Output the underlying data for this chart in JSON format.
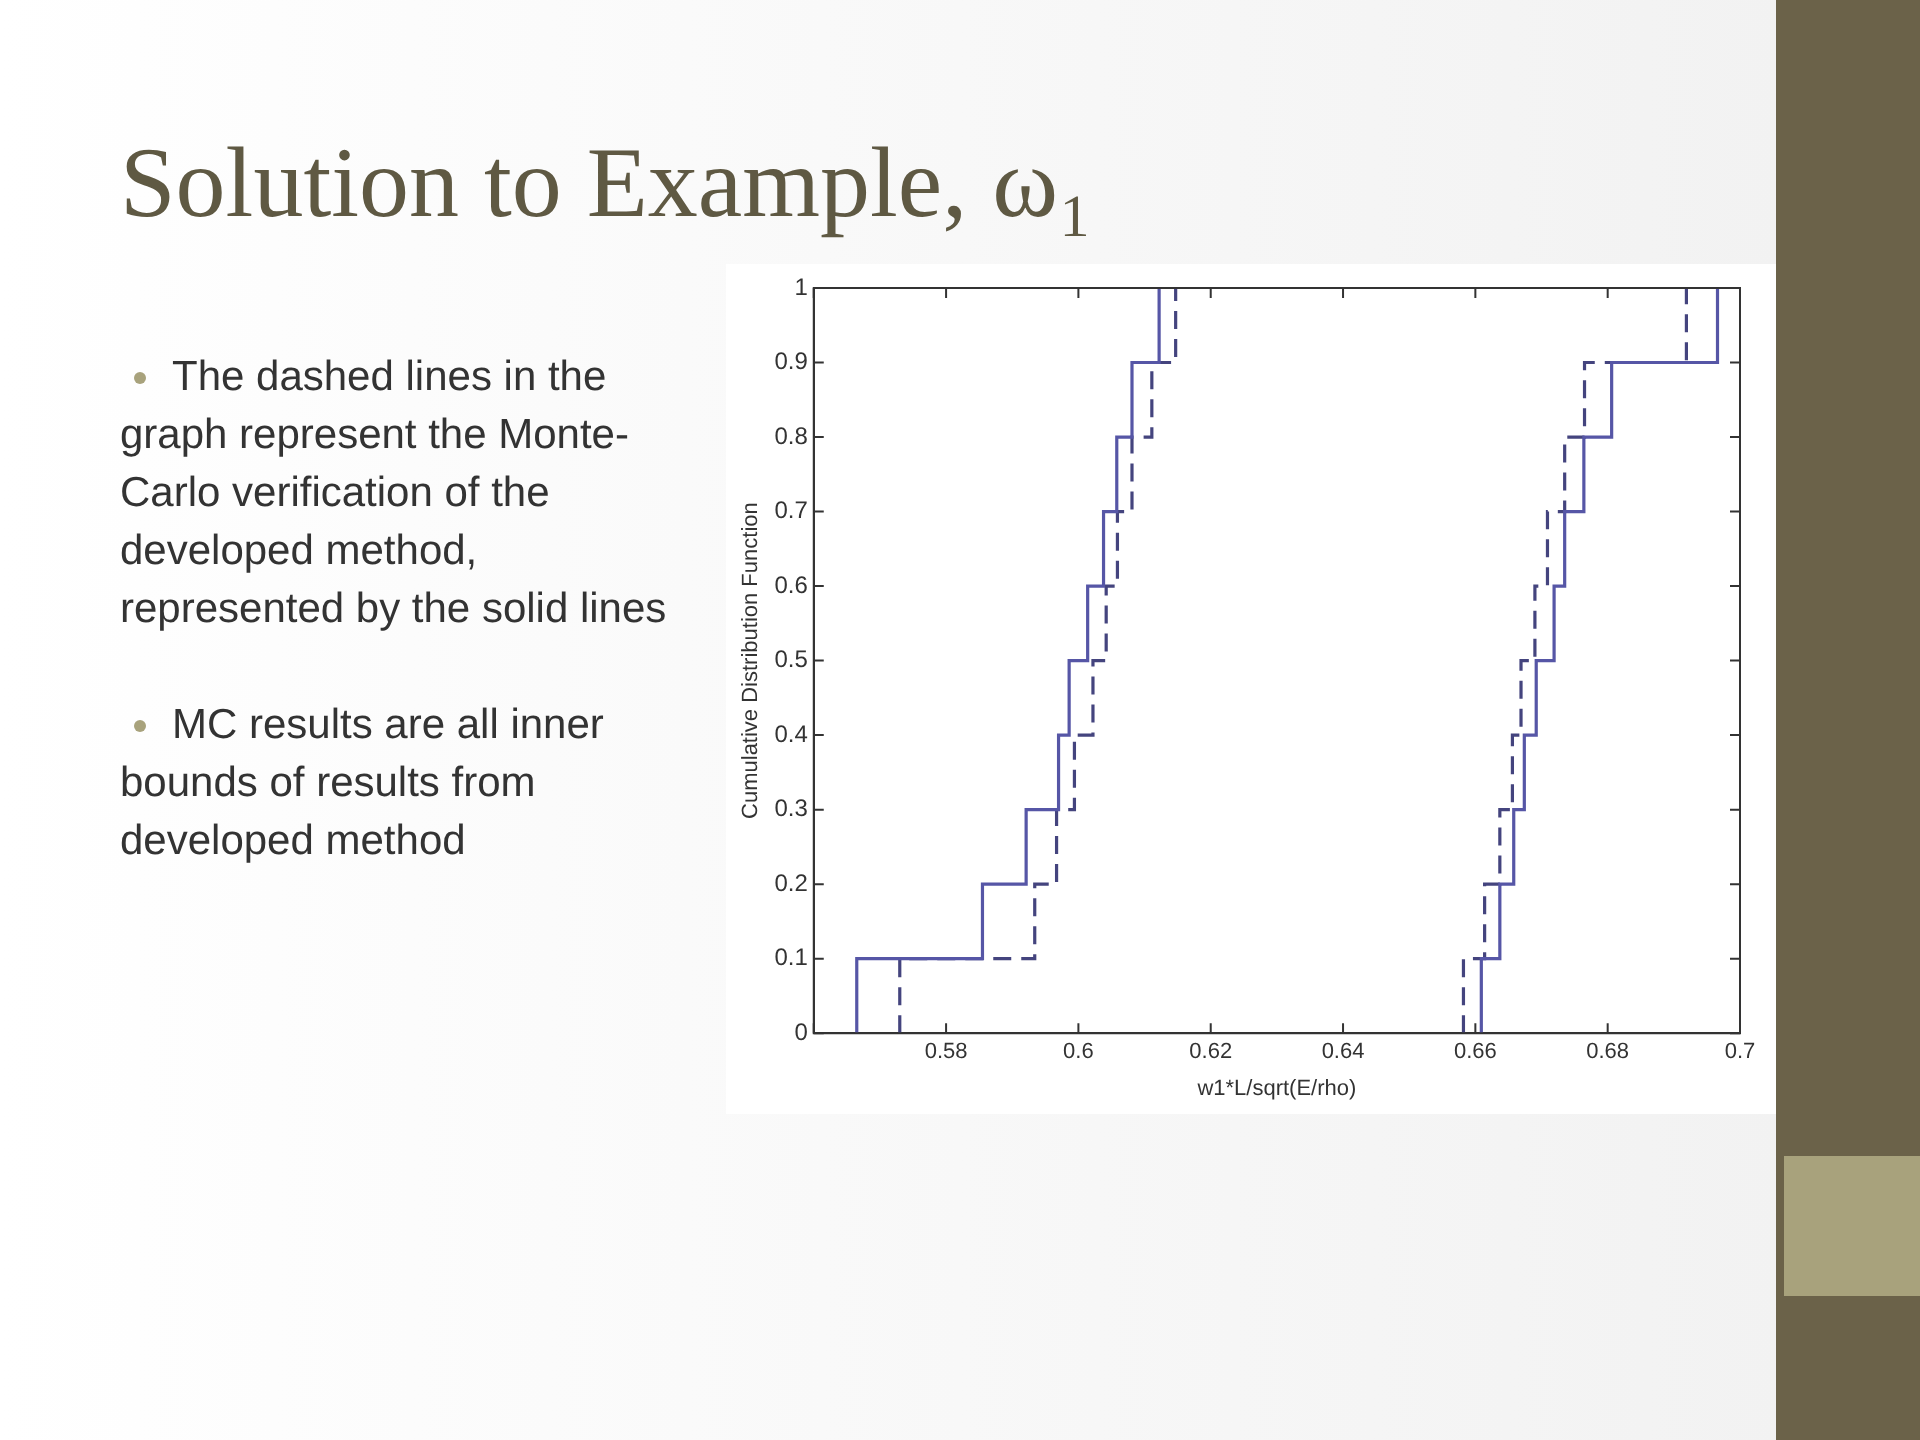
{
  "chart_data": {
    "type": "step",
    "title": "Solution to Example, ω₁",
    "xlabel": "w1*L/sqrt(E/rho)",
    "ylabel": "Cumulative Distribution Function",
    "annotations": [
      "The dashed lines in the graph represent the Monte-Carlo verification of the developed method, represented by the solid lines",
      "MC results are all inner bounds of results from developed method"
    ],
    "xlim": [
      0.56,
      0.7
    ],
    "xticks": [
      {
        "value": 0.56,
        "label": null
      },
      0.58,
      0.6,
      0.62,
      0.64,
      0.66,
      0.68,
      0.7
    ],
    "ylim": [
      0,
      1
    ],
    "yticks": [
      0,
      0.1,
      0.2,
      0.3,
      0.4,
      0.5,
      0.6,
      0.7,
      0.8,
      0.9,
      1
    ],
    "marker": "none",
    "grid": false,
    "legend": false,
    "series": [
      {
        "color": "#5656a6",
        "line_style": "solid",
        "x": [
          0.5665,
          0.5665,
          0.5855,
          0.5921,
          0.597,
          0.5986,
          0.6014,
          0.6038,
          0.6058,
          0.6081,
          0.6122
        ],
        "values": [
          0,
          0.1,
          0.2,
          0.3,
          0.4,
          0.5,
          0.6,
          0.7,
          0.8,
          0.9,
          1
        ]
      },
      {
        "color": "#44447e",
        "line_style": "dashed",
        "x": [
          0.573,
          0.573,
          0.5934,
          0.5967,
          0.5994,
          0.6022,
          0.6042,
          0.6059,
          0.6081,
          0.6111,
          0.6147
        ],
        "values": [
          0,
          0.1,
          0.2,
          0.3,
          0.4,
          0.5,
          0.6,
          0.7,
          0.8,
          0.9,
          1
        ]
      },
      {
        "color": "#5656a6",
        "line_style": "solid",
        "x": [
          0.6609,
          0.6609,
          0.6637,
          0.6658,
          0.6674,
          0.6692,
          0.6719,
          0.6735,
          0.6764,
          0.6806,
          0.6966
        ],
        "values": [
          0,
          0.1,
          0.2,
          0.3,
          0.4,
          0.5,
          0.6,
          0.7,
          0.8,
          0.9,
          1
        ]
      },
      {
        "color": "#44447e",
        "line_style": "dashed",
        "x": [
          0.6582,
          0.6582,
          0.6614,
          0.6637,
          0.6656,
          0.6669,
          0.669,
          0.6709,
          0.6735,
          0.6765,
          0.6919
        ],
        "values": [
          0,
          0.1,
          0.2,
          0.3,
          0.4,
          0.5,
          0.6,
          0.7,
          0.8,
          0.9,
          1
        ]
      }
    ]
  }
}
